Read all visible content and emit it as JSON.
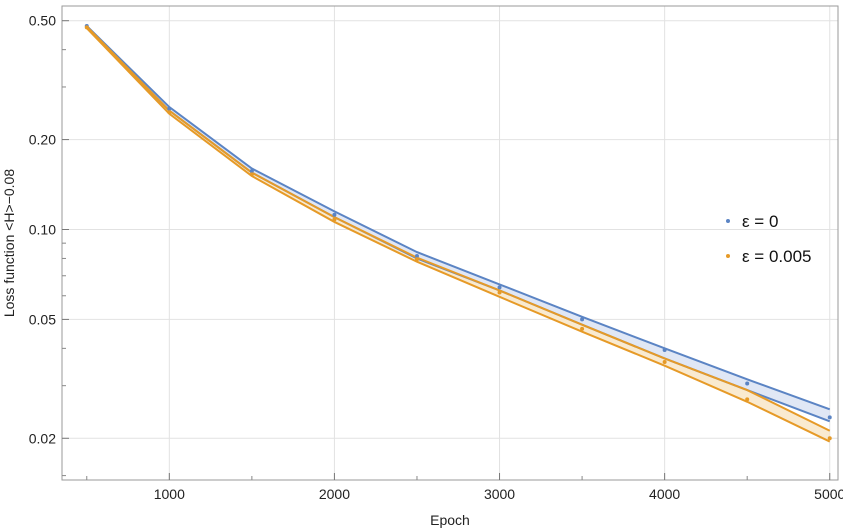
{
  "chart_data": {
    "type": "line",
    "title": "",
    "xlabel": "Epoch",
    "ylabel": "Loss function <H>−0.08",
    "yscale": "log",
    "xlim": [
      350,
      5050
    ],
    "ylim": [
      0.0145,
      0.56
    ],
    "xticks": [
      1000,
      2000,
      3000,
      4000,
      5000
    ],
    "xtick_labels": [
      "1000",
      "2000",
      "3000",
      "4000",
      "5000"
    ],
    "yticks": [
      0.02,
      0.05,
      0.1,
      0.2,
      0.5
    ],
    "ytick_labels": [
      "0.02",
      "0.05",
      "0.10",
      "0.20",
      "0.50"
    ],
    "grid": true,
    "legend_position": "right",
    "series": [
      {
        "name": "ε = 0",
        "color": "#5b84c4",
        "band_fill": "#dbe3f3",
        "x": [
          500,
          1000,
          1500,
          2000,
          2500,
          3000,
          3500,
          4000,
          4500,
          5000
        ],
        "points": [
          0.48,
          0.254,
          0.157,
          0.112,
          0.0815,
          0.064,
          0.05,
          0.0395,
          0.0305,
          0.0235
        ],
        "band_upper": [
          0.48,
          0.257,
          0.16,
          0.115,
          0.084,
          0.0655,
          0.051,
          0.04,
          0.0315,
          0.025
        ],
        "band_lower": [
          0.475,
          0.25,
          0.155,
          0.11,
          0.08,
          0.0625,
          0.048,
          0.037,
          0.029,
          0.0228
        ]
      },
      {
        "name": "ε = 0.005",
        "color": "#e69a27",
        "band_fill": "#f8e6c8",
        "x": [
          500,
          1000,
          1500,
          2000,
          2500,
          3000,
          3500,
          4000,
          4500,
          5000
        ],
        "points": [
          0.475,
          0.247,
          0.153,
          0.108,
          0.0795,
          0.0615,
          0.0465,
          0.036,
          0.027,
          0.02
        ],
        "band_upper": [
          0.478,
          0.25,
          0.155,
          0.11,
          0.0805,
          0.0625,
          0.048,
          0.037,
          0.029,
          0.0212
        ],
        "band_lower": [
          0.472,
          0.244,
          0.151,
          0.106,
          0.078,
          0.0595,
          0.0455,
          0.035,
          0.0265,
          0.0195
        ]
      }
    ]
  }
}
